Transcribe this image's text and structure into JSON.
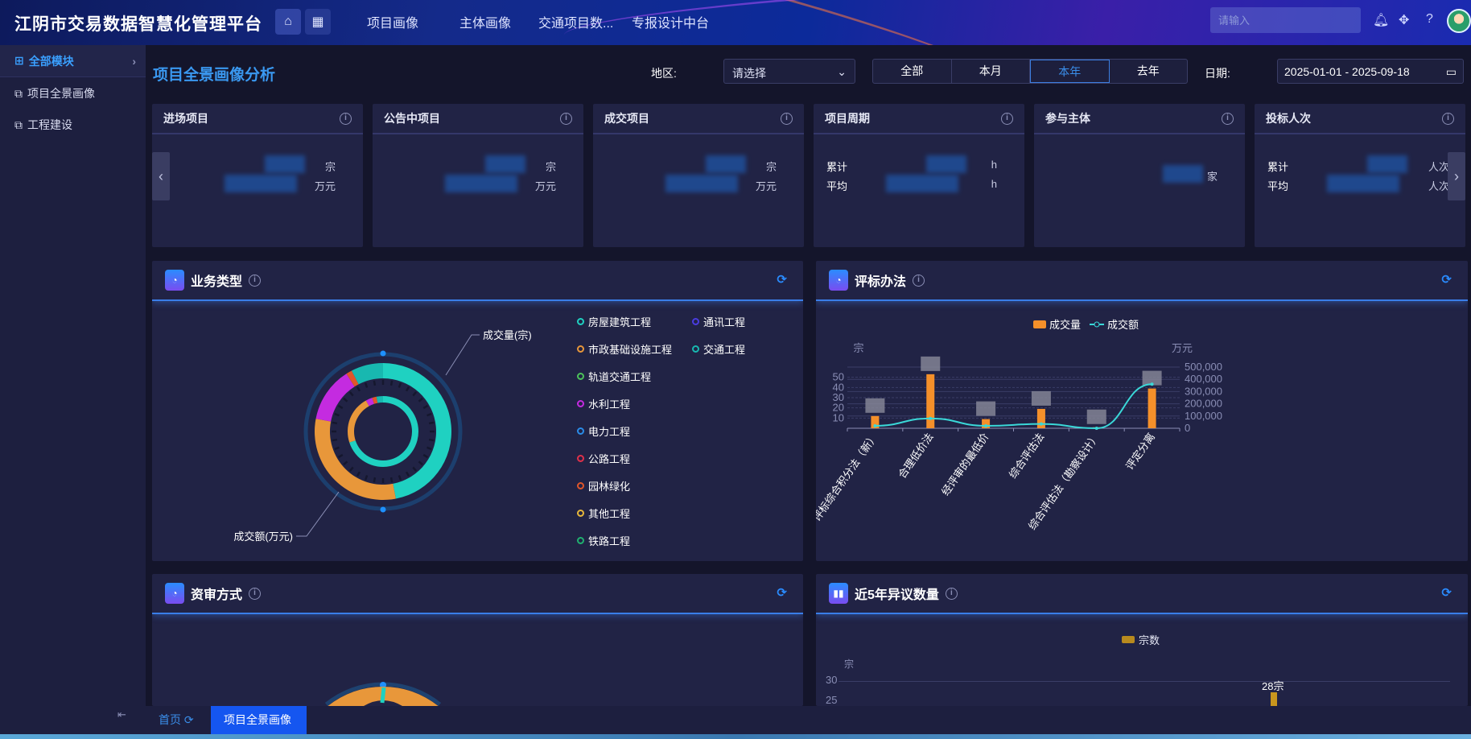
{
  "header": {
    "title": "江阴市交易数据智慧化管理平台",
    "home_icon": "home-icon",
    "grid_icon": "grid-icon",
    "nav": [
      "项目画像",
      "主体画像",
      "交通项目数...",
      "专报设计中台"
    ],
    "search_placeholder": "请输入"
  },
  "sidebar": {
    "items": [
      {
        "label": "全部模块",
        "icon": "grid-icon"
      },
      {
        "label": "项目全景画像",
        "icon": "window-icon"
      },
      {
        "label": "工程建设",
        "icon": "window-icon"
      }
    ]
  },
  "page": {
    "title": "项目全景画像分析",
    "region_label": "地区:",
    "region_value": "请选择",
    "periods": [
      "全部",
      "本月",
      "本年",
      "去年"
    ],
    "active_period": "本年",
    "date_label": "日期:",
    "date_value": "2025-01-01 - 2025-09-18"
  },
  "cards": [
    {
      "title": "进场项目",
      "rows": [
        {
          "label": "",
          "unit": "宗"
        },
        {
          "label": "",
          "unit": "万元"
        }
      ]
    },
    {
      "title": "公告中项目",
      "rows": [
        {
          "label": "",
          "unit": "宗"
        },
        {
          "label": "",
          "unit": "万元"
        }
      ]
    },
    {
      "title": "成交项目",
      "rows": [
        {
          "label": "",
          "unit": "宗"
        },
        {
          "label": "",
          "unit": "万元"
        }
      ]
    },
    {
      "title": "项目周期",
      "rows": [
        {
          "label": "累计",
          "unit": "h"
        },
        {
          "label": "平均",
          "unit": "h"
        }
      ]
    },
    {
      "title": "参与主体",
      "rows": [
        {
          "label": "",
          "unit": "家"
        }
      ]
    },
    {
      "title": "投标人次",
      "rows": [
        {
          "label": "累计",
          "unit": "人次"
        },
        {
          "label": "平均",
          "unit": "人次"
        }
      ]
    }
  ],
  "panels": {
    "business": "业务类型",
    "method": "评标办法",
    "qualification": "资审方式",
    "objection": "近5年异议数量"
  },
  "chart_data": [
    {
      "type": "pie",
      "title": "业务类型",
      "legend": [
        {
          "name": "房屋建筑工程",
          "color": "#1fd1c1"
        },
        {
          "name": "通讯工程",
          "color": "#4a3ce0"
        },
        {
          "name": "市政基础设施工程",
          "color": "#e8973a"
        },
        {
          "name": "交通工程",
          "color": "#18b8b0"
        },
        {
          "name": "轨道交通工程",
          "color": "#4cc25a"
        },
        {
          "name": "水利工程",
          "color": "#c42be0"
        },
        {
          "name": "电力工程",
          "color": "#2a8ce8"
        },
        {
          "name": "公路工程",
          "color": "#e0304a"
        },
        {
          "name": "园林绿化",
          "color": "#e0562a"
        },
        {
          "name": "其他工程",
          "color": "#e8b83a"
        },
        {
          "name": "铁路工程",
          "color": "#20b070"
        }
      ],
      "series": [
        {
          "name": "成交量(宗)",
          "values": {
            "房屋建筑工程": 47,
            "市政基础设施工程": 31,
            "水利工程": 13,
            "园林绿化": 1.4,
            "交通工程": 7.6
          }
        },
        {
          "name": "成交额(万元)",
          "values": {
            "房屋建筑工程": 70,
            "市政基础设施工程": 22,
            "水利工程": 3,
            "园林绿化": 2,
            "交通工程": 3
          }
        }
      ]
    },
    {
      "type": "bar+line",
      "title": "评标办法",
      "categories": [
        "评标综合积分法（新）",
        "合理低价法",
        "经评审的最低价",
        "综合评估法",
        "综合评估法（勘察设计）",
        "评定分离"
      ],
      "series": [
        {
          "name": "成交量",
          "type": "bar",
          "axis": "left",
          "values": [
            12,
            53,
            9,
            19,
            1,
            39
          ],
          "color": "#f5902a"
        },
        {
          "name": "成交额",
          "type": "line",
          "axis": "right",
          "values": [
            20000,
            80000,
            20000,
            35000,
            0,
            360000
          ],
          "color": "#3ad8d8"
        }
      ],
      "ylabel_left": "宗",
      "ylabel_right": "万元",
      "yticks_left": [
        10,
        20,
        30,
        40,
        50
      ],
      "ylim_left": [
        0,
        60
      ],
      "yticks_right": [
        "0",
        "100,000",
        "200,000",
        "300,000",
        "400,000",
        "500,000"
      ],
      "ylim_right": [
        0,
        500000
      ],
      "legend": "top-center"
    },
    {
      "type": "pie",
      "title": "资审方式",
      "colors": [
        "#e8973a",
        "#1fd1c1"
      ]
    },
    {
      "type": "bar",
      "title": "近5年异议数量",
      "series": [
        {
          "name": "宗数",
          "color": "#c8961e"
        }
      ],
      "ylabel": "宗",
      "yticks": [
        30,
        25
      ],
      "data_labels": [
        "28宗"
      ],
      "values": [
        28
      ]
    }
  ],
  "tabs": {
    "home": "首页",
    "active": "项目全景画像"
  }
}
